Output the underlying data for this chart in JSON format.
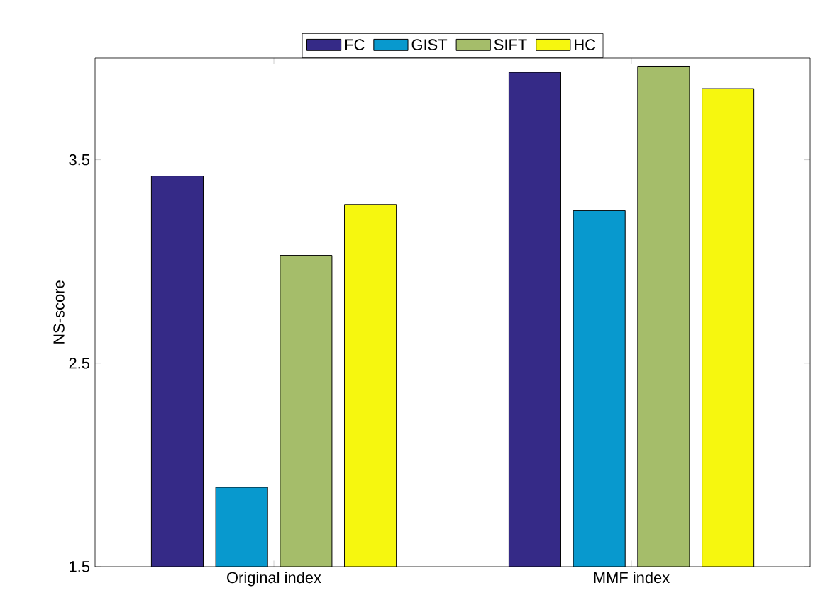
{
  "chart_data": {
    "type": "bar",
    "ylabel": "NS-score",
    "categories": [
      "Original index",
      "MMF index"
    ],
    "series": [
      {
        "name": "FC",
        "color": "#352a87",
        "values": [
          3.42,
          3.93
        ]
      },
      {
        "name": "GIST",
        "color": "#0899ce",
        "values": [
          1.89,
          3.25
        ]
      },
      {
        "name": "SIFT",
        "color": "#a5bd6a",
        "values": [
          3.03,
          3.96
        ]
      },
      {
        "name": "HC",
        "color": "#f6f70f",
        "values": [
          3.28,
          3.85
        ]
      }
    ],
    "ylim": [
      1.5,
      4.0
    ],
    "yticks": [
      1.5,
      2.5,
      3.5
    ],
    "grid": false,
    "legend": "top"
  }
}
